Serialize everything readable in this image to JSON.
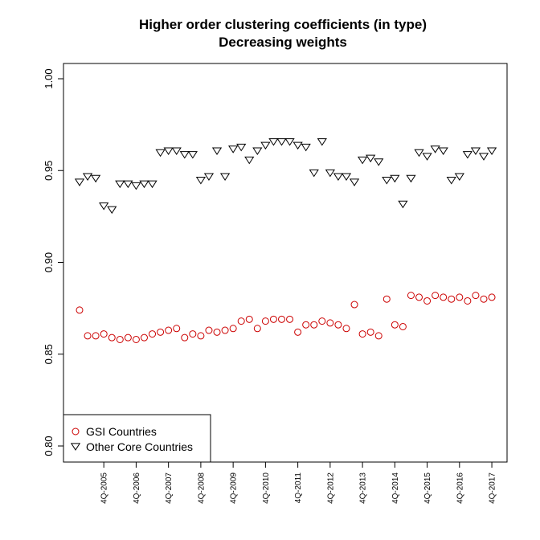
{
  "chart_data": {
    "type": "scatter",
    "title": "Higher order clustering coefficients (in type)",
    "subtitle": "Decreasing weights",
    "xlabel": "",
    "ylabel": "",
    "ylim": [
      0.8,
      1.0
    ],
    "yticks": [
      "0.80",
      "0.85",
      "0.90",
      "0.95",
      "1.00"
    ],
    "ytick_values": [
      0.8,
      0.85,
      0.9,
      0.95,
      1.0
    ],
    "x_tick_labels": [
      "4Q-2005",
      "4Q-2006",
      "4Q-2007",
      "4Q-2008",
      "4Q-2009",
      "4Q-2010",
      "4Q-2011",
      "4Q-2012",
      "4Q-2013",
      "4Q-2014",
      "4Q-2015",
      "4Q-2016",
      "4Q-2017"
    ],
    "x_tick_indices": [
      4,
      8,
      12,
      16,
      20,
      24,
      28,
      32,
      36,
      40,
      44,
      48,
      52
    ],
    "n_points": 52,
    "legend_position": "bottom-left",
    "series": [
      {
        "name": "GSI Countries",
        "marker": "circle",
        "color": "#cc0000",
        "values": [
          0.874,
          0.86,
          0.86,
          0.861,
          0.859,
          0.858,
          0.859,
          0.858,
          0.859,
          0.861,
          0.862,
          0.863,
          0.864,
          0.859,
          0.861,
          0.86,
          0.863,
          0.862,
          0.863,
          0.864,
          0.868,
          0.869,
          0.864,
          0.868,
          0.869,
          0.869,
          0.869,
          0.862,
          0.866,
          0.866,
          0.868,
          0.867,
          0.866,
          0.864,
          0.877,
          0.861,
          0.862,
          0.86,
          0.88,
          0.866,
          0.865,
          0.882,
          0.881,
          0.879,
          0.882,
          0.881,
          0.88,
          0.881,
          0.879,
          0.882,
          0.88,
          0.881
        ]
      },
      {
        "name": "Other Core Countries",
        "marker": "triangle-down",
        "color": "#000000",
        "values": [
          0.944,
          0.947,
          0.946,
          0.931,
          0.929,
          0.943,
          0.943,
          0.942,
          0.943,
          0.943,
          0.96,
          0.961,
          0.961,
          0.959,
          0.959,
          0.945,
          0.947,
          0.961,
          0.947,
          0.962,
          0.963,
          0.956,
          0.961,
          0.964,
          0.966,
          0.966,
          0.966,
          0.964,
          0.963,
          0.949,
          0.966,
          0.949,
          0.947,
          0.947,
          0.944,
          0.956,
          0.957,
          0.955,
          0.945,
          0.946,
          0.932,
          0.946,
          0.96,
          0.958,
          0.962,
          0.961,
          0.945,
          0.947,
          0.959,
          0.961,
          0.958,
          0.961
        ]
      }
    ]
  }
}
